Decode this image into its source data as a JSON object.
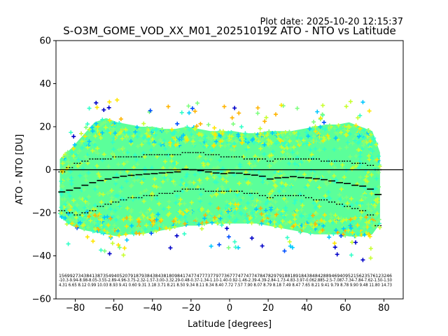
{
  "chart_data": {
    "type": "scatter",
    "plot_date": "Plot date: 2025-10-20 12:15:37",
    "title": "S-O3M_GOME_VOD_XX_M01_20251019Z ATO - NTO vs Latitude",
    "xlabel": "Latitude [degrees]",
    "ylabel": "ATO - NTO [DU]",
    "xlim": [
      -90,
      90
    ],
    "ylim": [
      -60,
      60
    ],
    "xticks": [
      -80,
      -60,
      -40,
      -20,
      0,
      20,
      40,
      60,
      80
    ],
    "yticks": [
      -60,
      -40,
      -20,
      0,
      20,
      40,
      60
    ],
    "zero_line": 0,
    "grid": false,
    "legend": "none",
    "marker": "+",
    "colormap": [
      "#0000c8",
      "#0050ff",
      "#00c8ff",
      "#32ffc8",
      "#7dff7d",
      "#c8ff32",
      "#ffe600",
      "#ffb400"
    ],
    "envelope": {
      "lat": [
        -88,
        -82,
        -76,
        -70,
        -64,
        -58,
        -52,
        -46,
        -40,
        -34,
        -28,
        -22,
        -16,
        -10,
        -4,
        2,
        8,
        14,
        20,
        26,
        32,
        38,
        44,
        50,
        56,
        62,
        68,
        74,
        78
      ],
      "upper": [
        5,
        10,
        16,
        22,
        24,
        22,
        21,
        20,
        20,
        19,
        19,
        20,
        19,
        18,
        18,
        18,
        17,
        17,
        18,
        18,
        18,
        19,
        20,
        21,
        21,
        22,
        20,
        18,
        8
      ],
      "lower": [
        -22,
        -26,
        -28,
        -29,
        -30,
        -31,
        -30,
        -30,
        -29,
        -28,
        -27,
        -26,
        -26,
        -25,
        -25,
        -25,
        -25,
        -25,
        -26,
        -27,
        -28,
        -29,
        -30,
        -30,
        -30,
        -31,
        -31,
        -30,
        -25
      ]
    },
    "bin_mean": {
      "lat": [
        -87,
        -83,
        -79,
        -75,
        -71,
        -67,
        -63,
        -59,
        -55,
        -51,
        -47,
        -43,
        -39,
        -35,
        -31,
        -27,
        -23,
        -19,
        -15,
        -11,
        -7,
        -3,
        1,
        5,
        9,
        13,
        17,
        21,
        25,
        29,
        33,
        37,
        41,
        45,
        49,
        53,
        57,
        61,
        65,
        69,
        73,
        77
      ],
      "mean": [
        -10.3,
        -9.5,
        -8.5,
        -7.2,
        -6.0,
        -5.0,
        -4.3,
        -3.6,
        -3.0,
        -2.6,
        -2.3,
        -2.0,
        -1.8,
        -1.5,
        -1.3,
        -1.0,
        0.2,
        0.0,
        -0.4,
        -1.0,
        -1.5,
        -1.8,
        -1.5,
        -1.6,
        -2.2,
        -2.5,
        -3.0,
        -4.3,
        -3.8,
        -3.6,
        -3.2,
        -3.6,
        -3.8,
        -4.2,
        -4.6,
        -5.2,
        -6.0,
        -6.4,
        -7.2,
        -7.6,
        -9.0,
        -11.5
      ],
      "upper_sigma": [
        -1,
        1,
        3,
        4,
        5,
        5,
        5,
        6,
        6,
        6,
        6,
        7,
        7,
        7,
        7,
        7,
        8,
        8,
        8,
        7,
        7,
        6,
        6,
        6,
        5,
        5,
        5,
        4,
        5,
        5,
        5,
        5,
        5,
        5,
        4,
        4,
        4,
        4,
        3,
        3,
        2,
        0
      ],
      "lower_sigma": [
        -19,
        -20,
        -21,
        -20,
        -19,
        -17,
        -16,
        -15,
        -14,
        -13,
        -13,
        -12,
        -12,
        -11,
        -11,
        -10,
        -9,
        -9,
        -9,
        -10,
        -10,
        -10,
        -10,
        -10,
        -11,
        -11,
        -12,
        -13,
        -12,
        -12,
        -12,
        -12,
        -13,
        -14,
        -14,
        -15,
        -16,
        -17,
        -18,
        -19,
        -21,
        -26
      ]
    },
    "stats_rows": [
      "1569927343841387354940520791879384384381809841747747773779773677747747747847829791881891843848428894694095215623576123246",
      "-10.3-9.94-8.98-8.05-3.55-2.89-4.96-3.75-2.32-1.57-3.00-3.32.29-0.48-0.37-1.34-1.10-1.40-0.92-1.46-2.39-4.39-2.84-1.73-4.83-3.97-0.062.885-2.5-7.087-7.34-7.84-7.62-1.50-1.50",
      "4.31 6.65 8.12 0.99 10.03 8.93 9.41 0.60 9.31 3.18 3.71 8.21 8.50 9.34 8.11 8.34 8.40 7.72 7.57 7.90 8.07 8.79 8.18 7.49 8.47 7.65 8.21 9.41 9.79 8.78 9.90 9.48 11.80 14.73"
    ]
  }
}
